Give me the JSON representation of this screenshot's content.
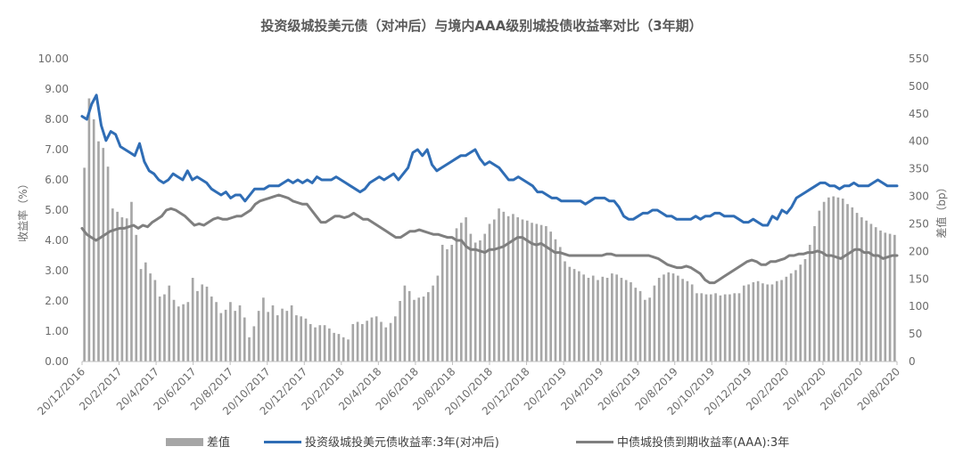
{
  "chart_data": {
    "type": "bar-line-combo",
    "title": "投资级城投美元债（对冲后）与境内AAA级别城投债收益率对比（3年期）",
    "y_left": {
      "label": "收益率（%）",
      "min": 0,
      "max": 10,
      "ticks": [
        "0.00",
        "1.00",
        "2.00",
        "3.00",
        "4.00",
        "5.00",
        "6.00",
        "7.00",
        "8.00",
        "9.00",
        "10.00"
      ]
    },
    "y_right": {
      "label": "差值（bp）",
      "min": 0,
      "max": 550,
      "ticks": [
        "0",
        "50",
        "100",
        "150",
        "200",
        "250",
        "300",
        "350",
        "400",
        "450",
        "500",
        "550"
      ]
    },
    "x_ticks": [
      "20/12/2016",
      "20/2/2017",
      "20/4/2017",
      "20/6/2017",
      "20/8/2017",
      "20/10/2017",
      "20/12/2017",
      "20/2/2018",
      "20/4/2018",
      "20/6/2018",
      "20/8/2018",
      "20/10/2018",
      "20/12/2018",
      "20/2/2019",
      "20/4/2019",
      "20/6/2019",
      "20/8/2019",
      "20/10/2019",
      "20/12/2019",
      "20/2/2020",
      "20/4/2020",
      "20/6/2020",
      "20/8/2020"
    ],
    "grid": false,
    "legend_position": "bottom",
    "series": [
      {
        "name": "差值",
        "kind": "bar",
        "axis": "right",
        "color": "#a6a6a6",
        "values": [
          352,
          478,
          440,
          400,
          388,
          354,
          278,
          272,
          262,
          260,
          290,
          230,
          168,
          180,
          160,
          148,
          118,
          122,
          138,
          112,
          100,
          104,
          108,
          152,
          128,
          140,
          136,
          118,
          108,
          88,
          94,
          108,
          92,
          102,
          80,
          44,
          64,
          92,
          116,
          90,
          102,
          84,
          96,
          92,
          102,
          84,
          82,
          78,
          68,
          62,
          66,
          66,
          60,
          52,
          50,
          44,
          40,
          68,
          72,
          68,
          74,
          80,
          82,
          72,
          62,
          70,
          82,
          110,
          138,
          128,
          112,
          116,
          118,
          126,
          138,
          156,
          212,
          204,
          212,
          242,
          252,
          262,
          232,
          216,
          220,
          232,
          250,
          258,
          278,
          272,
          264,
          268,
          262,
          258,
          256,
          252,
          250,
          248,
          246,
          236,
          222,
          208,
          182,
          172,
          168,
          164,
          158,
          152,
          156,
          148,
          154,
          152,
          160,
          158,
          152,
          148,
          144,
          134,
          128,
          112,
          116,
          138,
          152,
          158,
          162,
          160,
          156,
          150,
          146,
          140,
          124,
          124,
          122,
          122,
          124,
          120,
          122,
          122,
          124,
          124,
          138,
          140,
          144,
          146,
          142,
          140,
          140,
          146,
          148,
          154,
          160,
          166,
          176,
          186,
          212,
          246,
          274,
          290,
          298,
          300,
          298,
          296,
          286,
          280,
          270,
          262,
          256,
          250,
          244,
          238,
          234,
          232,
          230
        ]
      },
      {
        "name": "投资级城投美元债收益率:3年(对冲后)",
        "kind": "line",
        "axis": "left",
        "color": "#2f6db5",
        "values": [
          8.1,
          8.0,
          8.5,
          8.8,
          7.8,
          7.3,
          7.6,
          7.5,
          7.1,
          7.0,
          6.9,
          6.8,
          7.2,
          6.6,
          6.3,
          6.2,
          6.0,
          5.9,
          6.0,
          6.2,
          6.1,
          6.0,
          6.3,
          6.0,
          6.1,
          6.0,
          5.9,
          5.7,
          5.6,
          5.5,
          5.6,
          5.4,
          5.5,
          5.5,
          5.3,
          5.5,
          5.7,
          5.7,
          5.7,
          5.8,
          5.8,
          5.8,
          5.9,
          6.0,
          5.9,
          6.0,
          5.9,
          6.0,
          5.9,
          6.1,
          6.0,
          6.0,
          6.0,
          6.1,
          6.0,
          5.9,
          5.8,
          5.7,
          5.6,
          5.7,
          5.9,
          6.0,
          6.1,
          6.0,
          6.1,
          6.2,
          6.0,
          6.2,
          6.4,
          6.9,
          7.0,
          6.8,
          7.0,
          6.5,
          6.3,
          6.4,
          6.5,
          6.6,
          6.7,
          6.8,
          6.8,
          6.9,
          7.0,
          6.7,
          6.5,
          6.6,
          6.5,
          6.4,
          6.2,
          6.0,
          6.0,
          6.1,
          6.0,
          5.9,
          5.8,
          5.6,
          5.6,
          5.5,
          5.4,
          5.4,
          5.3,
          5.3,
          5.3,
          5.3,
          5.3,
          5.2,
          5.3,
          5.4,
          5.4,
          5.4,
          5.3,
          5.3,
          5.1,
          4.8,
          4.7,
          4.7,
          4.8,
          4.9,
          4.9,
          5.0,
          5.0,
          4.9,
          4.8,
          4.8,
          4.7,
          4.7,
          4.7,
          4.7,
          4.8,
          4.7,
          4.8,
          4.8,
          4.9,
          4.9,
          4.8,
          4.8,
          4.8,
          4.7,
          4.6,
          4.6,
          4.7,
          4.6,
          4.5,
          4.5,
          4.8,
          4.7,
          5.0,
          4.9,
          5.1,
          5.4,
          5.5,
          5.6,
          5.7,
          5.8,
          5.9,
          5.9,
          5.8,
          5.8,
          5.7,
          5.8,
          5.8,
          5.9,
          5.8,
          5.8,
          5.8,
          5.9,
          6.0,
          5.9,
          5.8,
          5.8,
          5.8
        ]
      },
      {
        "name": "中债城投债到期收益率(AAA):3年",
        "kind": "line",
        "axis": "left",
        "color": "#7f7f7f",
        "values": [
          4.4,
          4.2,
          4.1,
          4.0,
          4.1,
          4.2,
          4.3,
          4.35,
          4.4,
          4.4,
          4.45,
          4.5,
          4.4,
          4.5,
          4.45,
          4.6,
          4.7,
          4.8,
          5.0,
          5.05,
          5.0,
          4.9,
          4.8,
          4.65,
          4.5,
          4.55,
          4.5,
          4.6,
          4.7,
          4.75,
          4.7,
          4.7,
          4.75,
          4.8,
          4.8,
          4.9,
          5.0,
          5.2,
          5.3,
          5.35,
          5.4,
          5.45,
          5.5,
          5.45,
          5.4,
          5.3,
          5.25,
          5.2,
          5.2,
          5.0,
          4.8,
          4.6,
          4.6,
          4.7,
          4.8,
          4.8,
          4.75,
          4.8,
          4.9,
          4.8,
          4.7,
          4.7,
          4.6,
          4.5,
          4.4,
          4.3,
          4.2,
          4.1,
          4.1,
          4.2,
          4.3,
          4.3,
          4.35,
          4.3,
          4.25,
          4.2,
          4.2,
          4.15,
          4.1,
          4.1,
          4.0,
          4.0,
          3.8,
          3.7,
          3.7,
          3.65,
          3.6,
          3.7,
          3.7,
          3.75,
          3.8,
          3.9,
          4.0,
          4.1,
          4.1,
          4.0,
          3.9,
          3.85,
          3.9,
          3.8,
          3.7,
          3.6,
          3.6,
          3.55,
          3.5,
          3.5,
          3.5,
          3.5,
          3.5,
          3.5,
          3.5,
          3.5,
          3.55,
          3.55,
          3.5,
          3.5,
          3.5,
          3.5,
          3.5,
          3.5,
          3.5,
          3.5,
          3.45,
          3.4,
          3.3,
          3.2,
          3.15,
          3.1,
          3.1,
          3.15,
          3.1,
          3.0,
          2.9,
          2.7,
          2.6,
          2.6,
          2.7,
          2.8,
          2.9,
          3.0,
          3.1,
          3.2,
          3.3,
          3.35,
          3.3,
          3.2,
          3.2,
          3.3,
          3.3,
          3.35,
          3.4,
          3.5,
          3.5,
          3.55,
          3.55,
          3.6,
          3.6,
          3.65,
          3.6,
          3.5,
          3.5,
          3.45,
          3.4,
          3.5,
          3.6,
          3.7,
          3.7,
          3.6,
          3.6,
          3.5,
          3.5,
          3.4,
          3.45,
          3.5,
          3.5
        ]
      }
    ]
  },
  "legend": {
    "items": [
      "差值",
      "投资级城投美元债收益率:3年(对冲后)",
      "中债城投债到期收益率(AAA):3年"
    ]
  }
}
